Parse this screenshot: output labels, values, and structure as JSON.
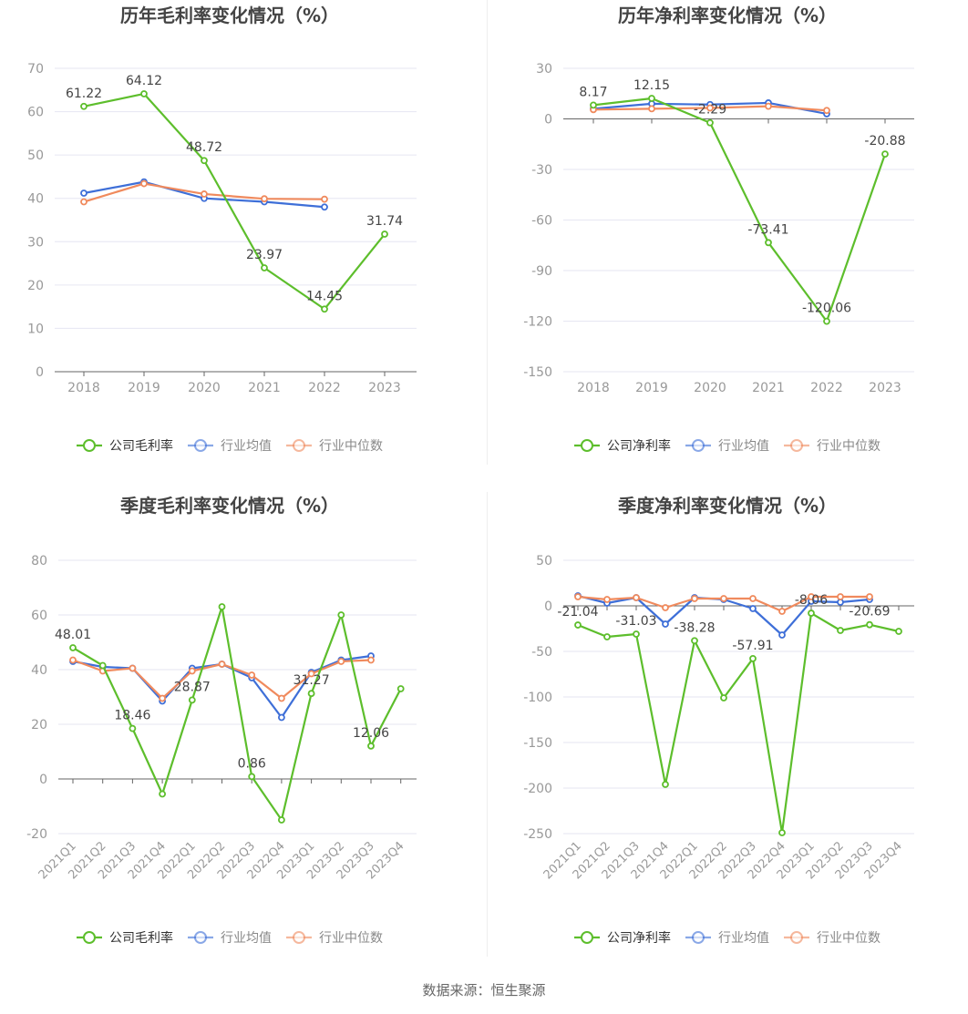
{
  "footer": {
    "source": "数据来源：恒生聚源"
  },
  "colors": {
    "company": "#5dbe2c",
    "industry_avg": "#3e6fd8",
    "industry_median": "#f08a5d",
    "grid": "#e6e6f2",
    "axis": "#666666",
    "tick": "#999999",
    "title": "#444444"
  },
  "chart_data": [
    {
      "type": "line",
      "title": "历年毛利率变化情况（%）",
      "categories": [
        "2018",
        "2019",
        "2020",
        "2021",
        "2022",
        "2023"
      ],
      "ylim": [
        0,
        70
      ],
      "yticks": [
        0,
        10,
        20,
        30,
        40,
        50,
        60,
        70
      ],
      "grid": true,
      "legend_position": "bottom",
      "series": [
        {
          "name": "公司毛利率",
          "color": "#5dbe2c",
          "values": [
            61.22,
            64.12,
            48.72,
            23.97,
            14.45,
            31.74
          ],
          "labels": [
            "61.22",
            "64.12",
            "48.72",
            "23.97",
            "14.45",
            "31.74"
          ]
        },
        {
          "name": "行业均值",
          "color": "#3e6fd8",
          "values": [
            41.2,
            43.8,
            40.0,
            39.2,
            38.0,
            null
          ]
        },
        {
          "name": "行业中位数",
          "color": "#f08a5d",
          "values": [
            39.2,
            43.4,
            41.0,
            39.9,
            39.8,
            null
          ]
        }
      ]
    },
    {
      "type": "line",
      "title": "历年净利率变化情况（%）",
      "categories": [
        "2018",
        "2019",
        "2020",
        "2021",
        "2022",
        "2023"
      ],
      "ylim": [
        -150,
        30
      ],
      "yticks": [
        -150,
        -120,
        -90,
        -60,
        -30,
        0,
        30
      ],
      "grid": true,
      "legend_position": "bottom",
      "series": [
        {
          "name": "公司净利率",
          "color": "#5dbe2c",
          "values": [
            8.17,
            12.15,
            -2.29,
            -73.41,
            -120.06,
            -20.88
          ],
          "labels": [
            "8.17",
            "12.15",
            "-2.29",
            "-73.41",
            "-120.06",
            "-20.88"
          ]
        },
        {
          "name": "行业均值",
          "color": "#3e6fd8",
          "values": [
            6.0,
            9.0,
            8.5,
            9.5,
            3.0,
            null
          ]
        },
        {
          "name": "行业中位数",
          "color": "#f08a5d",
          "values": [
            5.5,
            6.0,
            6.5,
            7.5,
            5.0,
            null
          ]
        }
      ]
    },
    {
      "type": "line",
      "title": "季度毛利率变化情况（%）",
      "categories": [
        "2021Q1",
        "2021Q2",
        "2021Q3",
        "2021Q4",
        "2022Q1",
        "2022Q2",
        "2022Q3",
        "2022Q4",
        "2023Q1",
        "2023Q2",
        "2023Q3",
        "2023Q4"
      ],
      "ylim": [
        -20,
        80
      ],
      "yticks": [
        -20,
        0,
        20,
        40,
        60,
        80
      ],
      "grid": true,
      "legend_position": "bottom",
      "series": [
        {
          "name": "公司毛利率",
          "color": "#5dbe2c",
          "values": [
            48.01,
            41.5,
            18.46,
            -5.5,
            28.87,
            63.0,
            0.86,
            -15.0,
            31.27,
            60.0,
            12.06,
            33.0
          ],
          "labels": [
            "48.01",
            "",
            "18.46",
            "",
            "28.87",
            "",
            "0.86",
            "",
            "31.27",
            "",
            "12.06",
            ""
          ]
        },
        {
          "name": "行业均值",
          "color": "#3e6fd8",
          "values": [
            43.0,
            41.0,
            40.5,
            28.5,
            40.5,
            42.0,
            37.0,
            22.5,
            39.0,
            43.5,
            45.0,
            null
          ]
        },
        {
          "name": "行业中位数",
          "color": "#f08a5d",
          "values": [
            43.5,
            39.5,
            40.5,
            29.5,
            39.5,
            42.0,
            38.0,
            29.5,
            38.5,
            43.0,
            43.5,
            null
          ]
        }
      ]
    },
    {
      "type": "line",
      "title": "季度净利率变化情况（%）",
      "categories": [
        "2021Q1",
        "2021Q2",
        "2021Q3",
        "2021Q4",
        "2022Q1",
        "2022Q2",
        "2022Q3",
        "2022Q4",
        "2023Q1",
        "2023Q2",
        "2023Q3",
        "2023Q4"
      ],
      "ylim": [
        -250,
        50
      ],
      "yticks": [
        -250,
        -200,
        -150,
        -100,
        -50,
        0,
        50
      ],
      "grid": true,
      "legend_position": "bottom",
      "series": [
        {
          "name": "公司净利率",
          "color": "#5dbe2c",
          "values": [
            -21.04,
            -34.0,
            -31.03,
            -196.0,
            -38.28,
            -101.0,
            -57.91,
            -249.0,
            -8.06,
            -27.0,
            -20.69,
            -28.0
          ],
          "labels": [
            "-21.04",
            "",
            "-31.03",
            "",
            "-38.28",
            "",
            "-57.91",
            "",
            "-8.06",
            "",
            "-20.69",
            ""
          ]
        },
        {
          "name": "行业均值",
          "color": "#3e6fd8",
          "values": [
            11.0,
            3.0,
            9.0,
            -20.0,
            9.0,
            7.0,
            -3.0,
            -32.0,
            5.0,
            4.0,
            7.0,
            null
          ]
        },
        {
          "name": "行业中位数",
          "color": "#f08a5d",
          "values": [
            10.0,
            7.0,
            9.0,
            -2.0,
            8.0,
            8.0,
            8.0,
            -6.0,
            10.0,
            10.0,
            10.0,
            null
          ]
        }
      ]
    }
  ]
}
